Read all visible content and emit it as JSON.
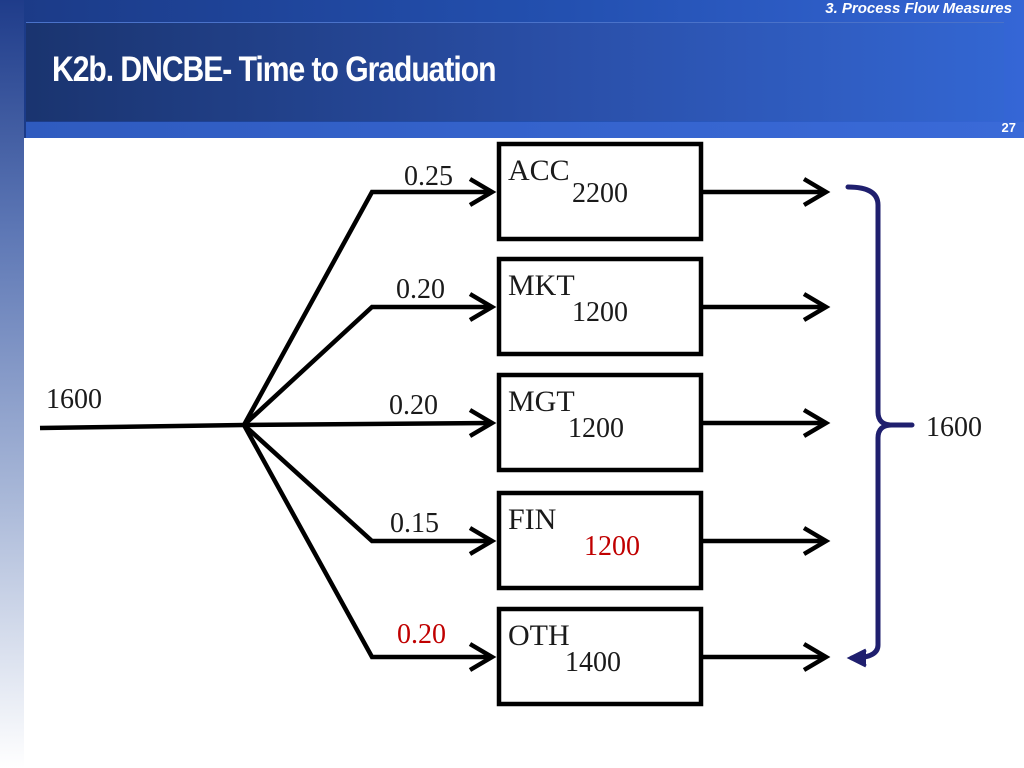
{
  "header": {
    "section_label": "3. Process Flow Measures",
    "title": "K2b. DNCBE- Time to Graduation",
    "page_number": "27"
  },
  "diagram": {
    "input_value": "1600",
    "output_value": "1600",
    "branches": [
      {
        "fraction": "0.25",
        "code": "ACC",
        "value": "2200",
        "fraction_color": "#1a1a1a",
        "value_color": "#1a1a1a"
      },
      {
        "fraction": "0.20",
        "code": "MKT",
        "value": "1200",
        "fraction_color": "#1a1a1a",
        "value_color": "#1a1a1a"
      },
      {
        "fraction": "0.20",
        "code": "MGT",
        "value": "1200",
        "fraction_color": "#1a1a1a",
        "value_color": "#1a1a1a"
      },
      {
        "fraction": "0.15",
        "code": "FIN",
        "value": "1200",
        "fraction_color": "#1a1a1a",
        "value_color": "#c00000"
      },
      {
        "fraction": "0.20",
        "code": "OTH",
        "value": "1400",
        "fraction_color": "#c00000",
        "value_color": "#1a1a1a"
      }
    ],
    "colors": {
      "line": "#000000",
      "bracket": "#1f1f6e",
      "highlight": "#c00000"
    }
  }
}
